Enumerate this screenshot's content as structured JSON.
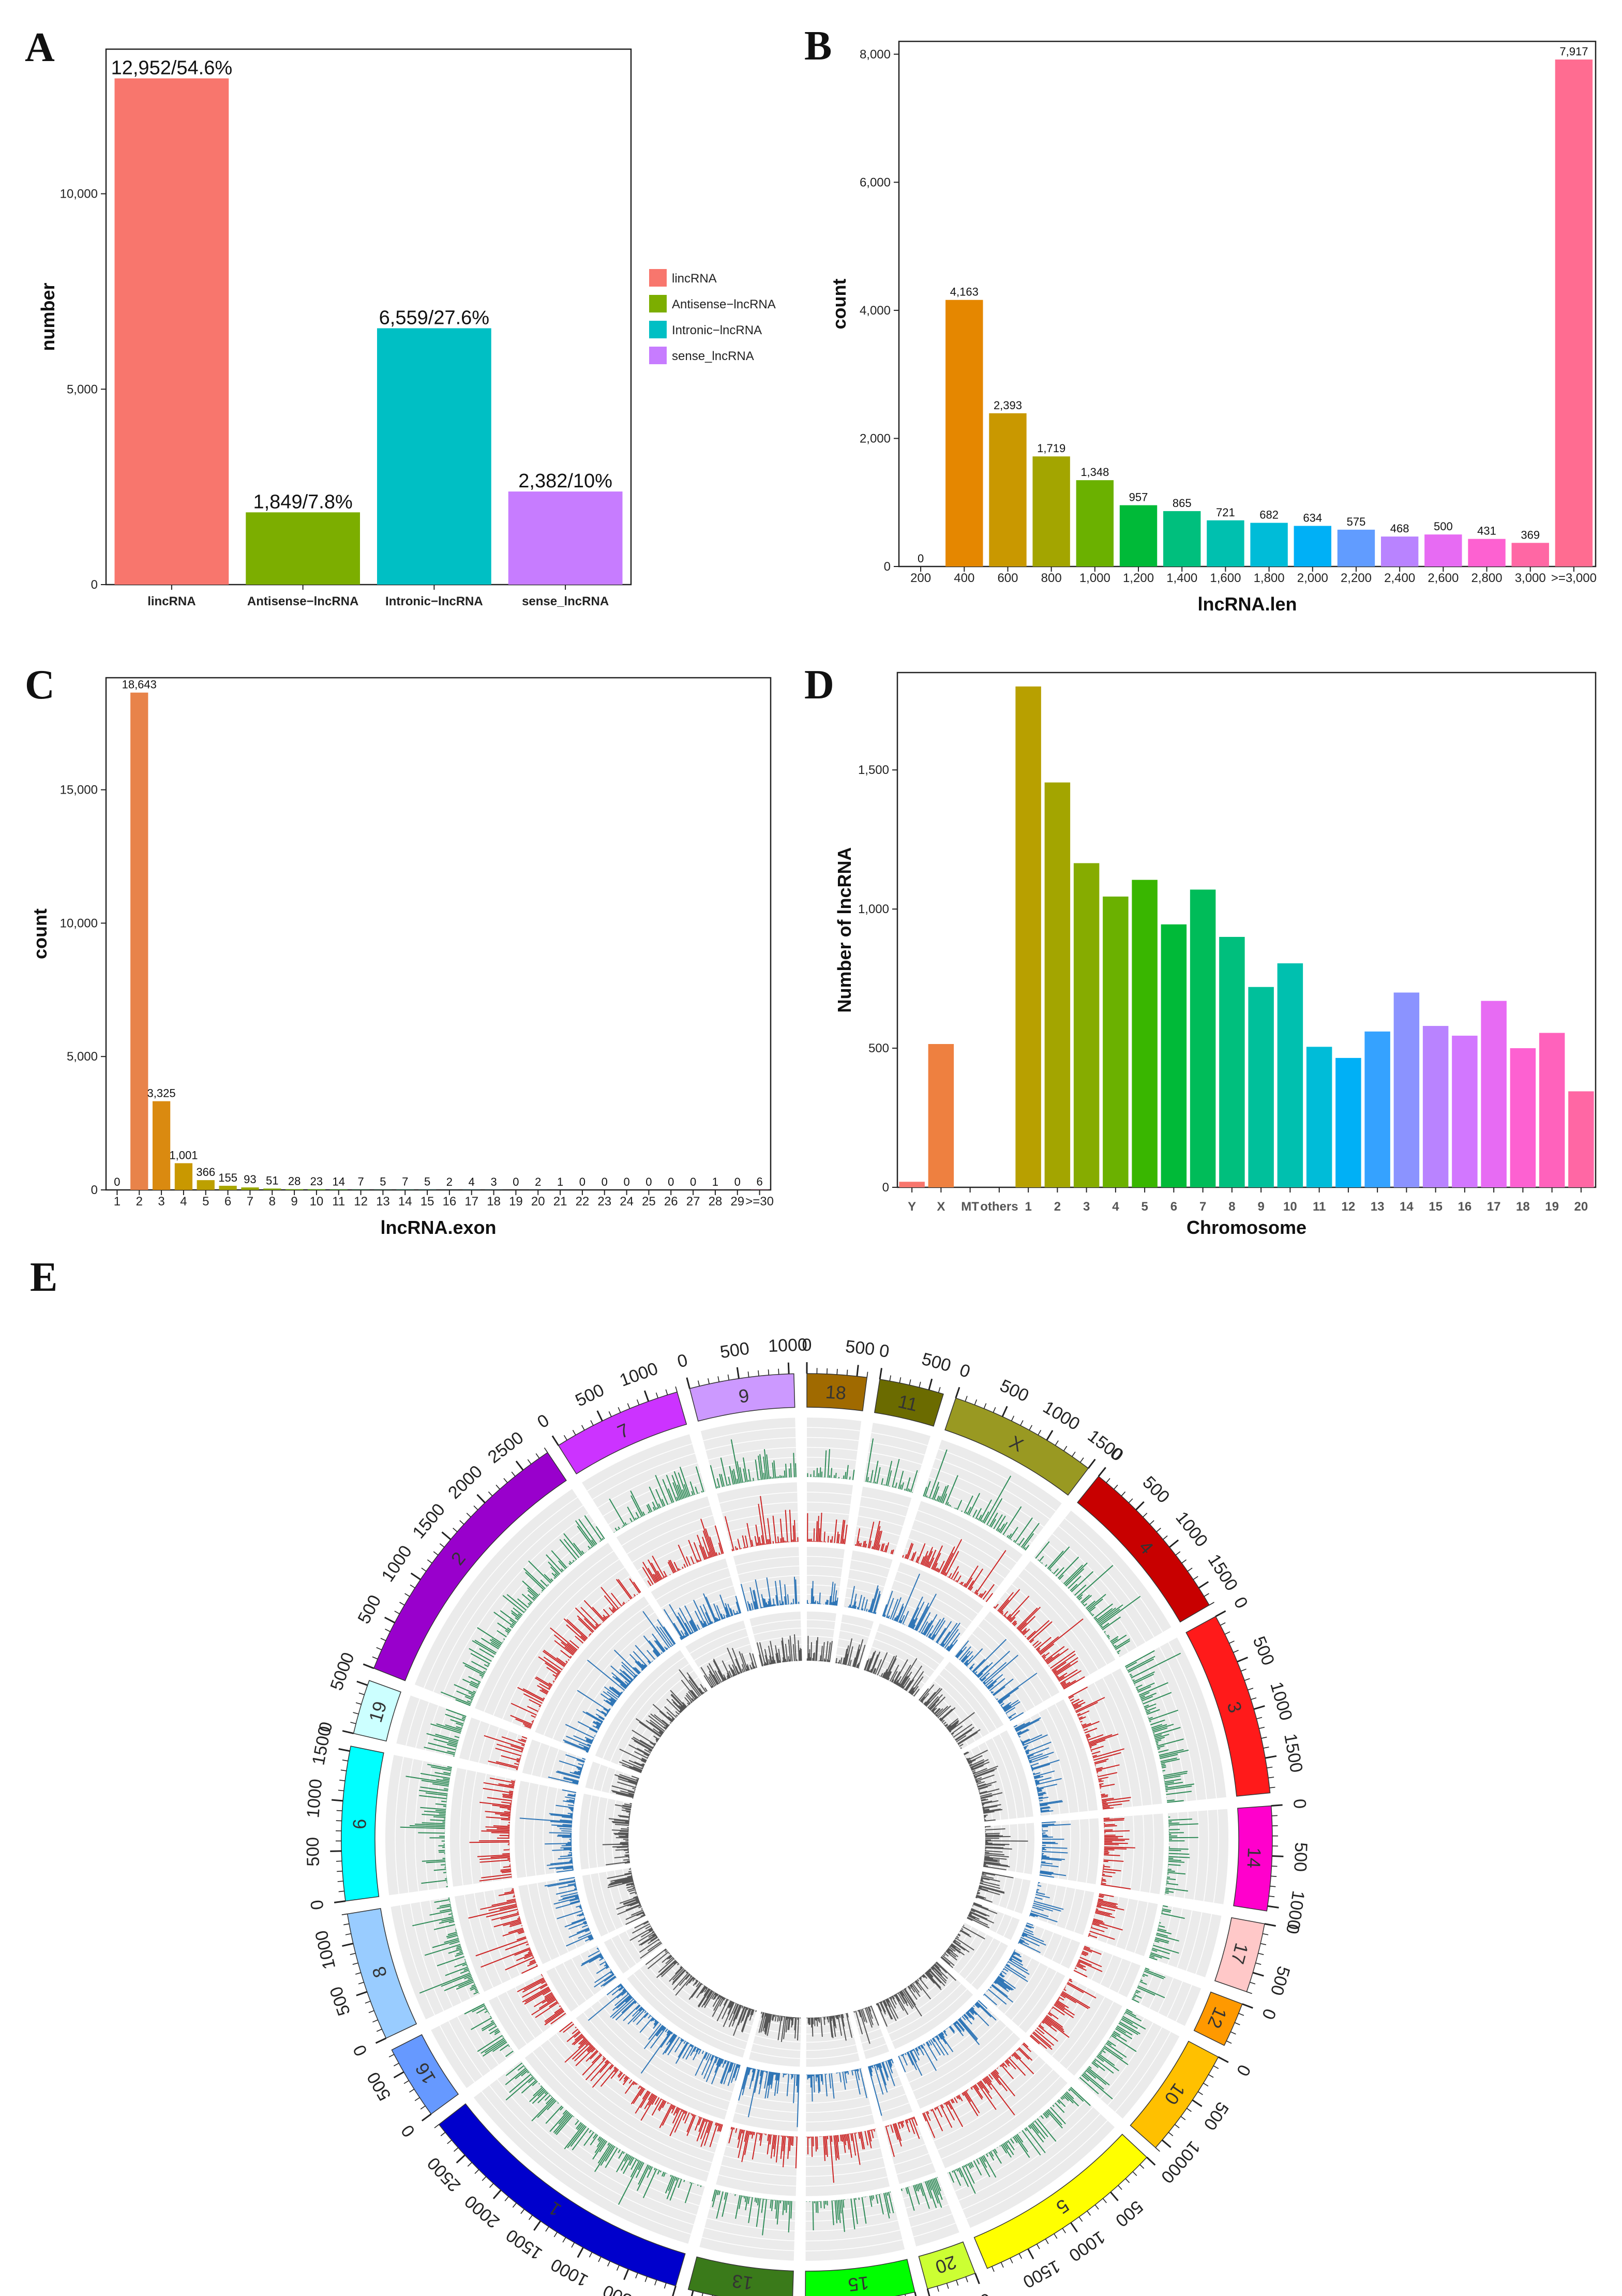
{
  "panels": {
    "A": "A",
    "B": "B",
    "C": "C",
    "D": "D",
    "E": "E"
  },
  "chart_data": [
    {
      "id": "A",
      "type": "bar",
      "title": "",
      "xlabel": "",
      "ylabel": "number",
      "ylim": [
        0,
        13700
      ],
      "yticks": [
        0,
        5000,
        10000
      ],
      "ytick_labels": [
        "0",
        "5,000",
        "10,000"
      ],
      "categories": [
        "lincRNA",
        "Antisense−lncRNA",
        "Intronic−lncRNA",
        "sense_lncRNA"
      ],
      "values": [
        12952,
        1849,
        6559,
        2382
      ],
      "data_labels": [
        "12,952/54.6%",
        "1,849/7.8%",
        "6,559/27.6%",
        "2,382/10%"
      ],
      "colors": [
        "#F8766D",
        "#7CAE00",
        "#00BFC4",
        "#C77CFF"
      ],
      "legend": [
        "lincRNA",
        "Antisense−lncRNA",
        "Intronic−lncRNA",
        "sense_lncRNA"
      ],
      "legend_position": "right"
    },
    {
      "id": "B",
      "type": "bar",
      "title": "",
      "xlabel": "lncRNA.len",
      "ylabel": "count",
      "ylim": [
        0,
        8200
      ],
      "yticks": [
        0,
        2000,
        4000,
        6000,
        8000
      ],
      "ytick_labels": [
        "0",
        "2,000",
        "4,000",
        "6,000",
        "8,000"
      ],
      "categories": [
        "200",
        "400",
        "600",
        "800",
        "1,000",
        "1,200",
        "1,400",
        "1,600",
        "1,800",
        "2,000",
        "2,200",
        "2,400",
        "2,600",
        "2,800",
        "3,000",
        ">=3,000"
      ],
      "values": [
        0,
        4163,
        2393,
        1719,
        1348,
        957,
        865,
        721,
        682,
        634,
        575,
        468,
        500,
        431,
        369,
        7917
      ],
      "data_labels": [
        "0",
        "4,163",
        "2,393",
        "1,719",
        "1,348",
        "957",
        "865",
        "721",
        "682",
        "634",
        "575",
        "468",
        "500",
        "431",
        "369",
        "7,917"
      ],
      "colors": [
        "#F8766D",
        "#E58700",
        "#C99800",
        "#A3A500",
        "#6BB100",
        "#00BA38",
        "#00BF7D",
        "#00C0AF",
        "#00BCD8",
        "#00B0F6",
        "#619CFF",
        "#B983FF",
        "#E76BF3",
        "#FD61D1",
        "#FF67A4",
        "#FF6C91"
      ]
    },
    {
      "id": "C",
      "type": "bar",
      "title": "",
      "xlabel": "lncRNA.exon",
      "ylabel": "count",
      "ylim": [
        0,
        19200
      ],
      "yticks": [
        0,
        5000,
        10000,
        15000
      ],
      "ytick_labels": [
        "0",
        "5,000",
        "10,000",
        "15,000"
      ],
      "categories": [
        "1",
        "2",
        "3",
        "4",
        "5",
        "6",
        "7",
        "8",
        "9",
        "10",
        "11",
        "12",
        "13",
        "14",
        "15",
        "16",
        "17",
        "18",
        "19",
        "20",
        "21",
        "22",
        "23",
        "24",
        "25",
        "26",
        "27",
        "28",
        "29",
        ">=30"
      ],
      "values": [
        0,
        18643,
        3325,
        1001,
        366,
        155,
        93,
        51,
        28,
        23,
        14,
        7,
        5,
        7,
        5,
        2,
        4,
        3,
        0,
        2,
        1,
        0,
        0,
        0,
        0,
        0,
        0,
        1,
        0,
        6
      ],
      "data_labels": [
        "0",
        "18,643",
        "3,325",
        "1,001",
        "366",
        "155",
        "93",
        "51",
        "28",
        "23",
        "14",
        "7",
        "5",
        "7",
        "5",
        "2",
        "4",
        "3",
        "0",
        "2",
        "1",
        "0",
        "0",
        "0",
        "0",
        "0",
        "0",
        "1",
        "0",
        "6"
      ],
      "colors": [
        "#E8834A",
        "#E8834A",
        "#DA8A10",
        "#C99800",
        "#BDA000",
        "#A9A600",
        "#98A800",
        "#86AC00",
        "#70B000",
        "#54B400",
        "#28B800",
        "#00BA38",
        "#00BD5C",
        "#00BE7B",
        "#00C096",
        "#00C0AF",
        "#00BFC4",
        "#00BCD8",
        "#00B8E7",
        "#00B0F6",
        "#35A2FF",
        "#619CFF",
        "#8D92FF",
        "#B983FF",
        "#D277FF",
        "#E76BF3",
        "#F564E3",
        "#FD61D1",
        "#FF62BC",
        "#FF67A4"
      ]
    },
    {
      "id": "D",
      "type": "bar",
      "title": "",
      "xlabel": "Chromosome",
      "ylabel": "Number of lncRNA",
      "ylim": [
        0,
        1850
      ],
      "yticks": [
        0,
        500,
        1000,
        1500
      ],
      "ytick_labels": [
        "0",
        "500",
        "1,000",
        "1,500"
      ],
      "categories": [
        "Y",
        "X",
        "MT",
        "others",
        "1",
        "2",
        "3",
        "4",
        "5",
        "6",
        "7",
        "8",
        "9",
        "10",
        "11",
        "12",
        "13",
        "14",
        "15",
        "16",
        "17",
        "18",
        "19",
        "20"
      ],
      "values": [
        20,
        515,
        0,
        0,
        1800,
        1455,
        1165,
        1045,
        1105,
        945,
        1070,
        900,
        720,
        805,
        505,
        465,
        560,
        700,
        580,
        545,
        670,
        500,
        555,
        345
      ],
      "colors": [
        "#F8766D",
        "#EE8040",
        "#E58700",
        "#D78F00",
        "#B8A000",
        "#A3A500",
        "#86AC00",
        "#6BB100",
        "#39B600",
        "#00BA38",
        "#00BC59",
        "#00BF7D",
        "#00C09B",
        "#00C0AF",
        "#00BCD8",
        "#00B0F6",
        "#35A2FF",
        "#8B93FF",
        "#B983FF",
        "#D277FF",
        "#E76BF3",
        "#FD61D1",
        "#FF62BC",
        "#FF67A4"
      ]
    },
    {
      "id": "E",
      "type": "circos",
      "title": "",
      "chromosomes": [
        {
          "name": "18",
          "length": 600,
          "color": "#A06A00"
        },
        {
          "name": "11",
          "length": 650,
          "color": "#6B6B00"
        },
        {
          "name": "X",
          "length": 1500,
          "color": "#999922"
        },
        {
          "name": "4",
          "length": 1700,
          "color": "#C80000"
        },
        {
          "name": "3",
          "length": 1850,
          "color": "#FF1A1A"
        },
        {
          "name": "14",
          "length": 1050,
          "color": "#FF00CC"
        },
        {
          "name": "17",
          "length": 700,
          "color": "#FFC8C8"
        },
        {
          "name": "12",
          "length": 450,
          "color": "#FF9900"
        },
        {
          "name": "10",
          "length": 1100,
          "color": "#FFC000"
        },
        {
          "name": "5",
          "length": 1950,
          "color": "#FFFF00"
        },
        {
          "name": "20",
          "length": 500,
          "color": "#CCFF33"
        },
        {
          "name": "15",
          "length": 1100,
          "color": "#00FF00"
        },
        {
          "name": "13",
          "length": 1050,
          "color": "#3A7A1A"
        },
        {
          "name": "1",
          "length": 2900,
          "color": "#0000CC"
        },
        {
          "name": "16",
          "length": 750,
          "color": "#6699FF"
        },
        {
          "name": "8",
          "length": 1300,
          "color": "#99CCFF"
        },
        {
          "name": "6",
          "length": 1550,
          "color": "#00FFFF"
        },
        {
          "name": "19",
          "length": 550,
          "color": "#CCFFFF"
        },
        {
          "name": "2",
          "length": 2800,
          "color": "#9900CC"
        },
        {
          "name": "7",
          "length": 1300,
          "color": "#CC33FF"
        },
        {
          "name": "9",
          "length": 1050,
          "color": "#CC99FF"
        }
      ],
      "tick_labels": [
        "0",
        "500",
        "1000",
        "1500",
        "2000",
        "2500"
      ],
      "tracks": [
        {
          "name": "track1",
          "color": "#2E8B57"
        },
        {
          "name": "track2",
          "color": "#CC2222"
        },
        {
          "name": "track3",
          "color": "#2E75B6"
        },
        {
          "name": "track4",
          "color": "#555555"
        }
      ]
    }
  ]
}
